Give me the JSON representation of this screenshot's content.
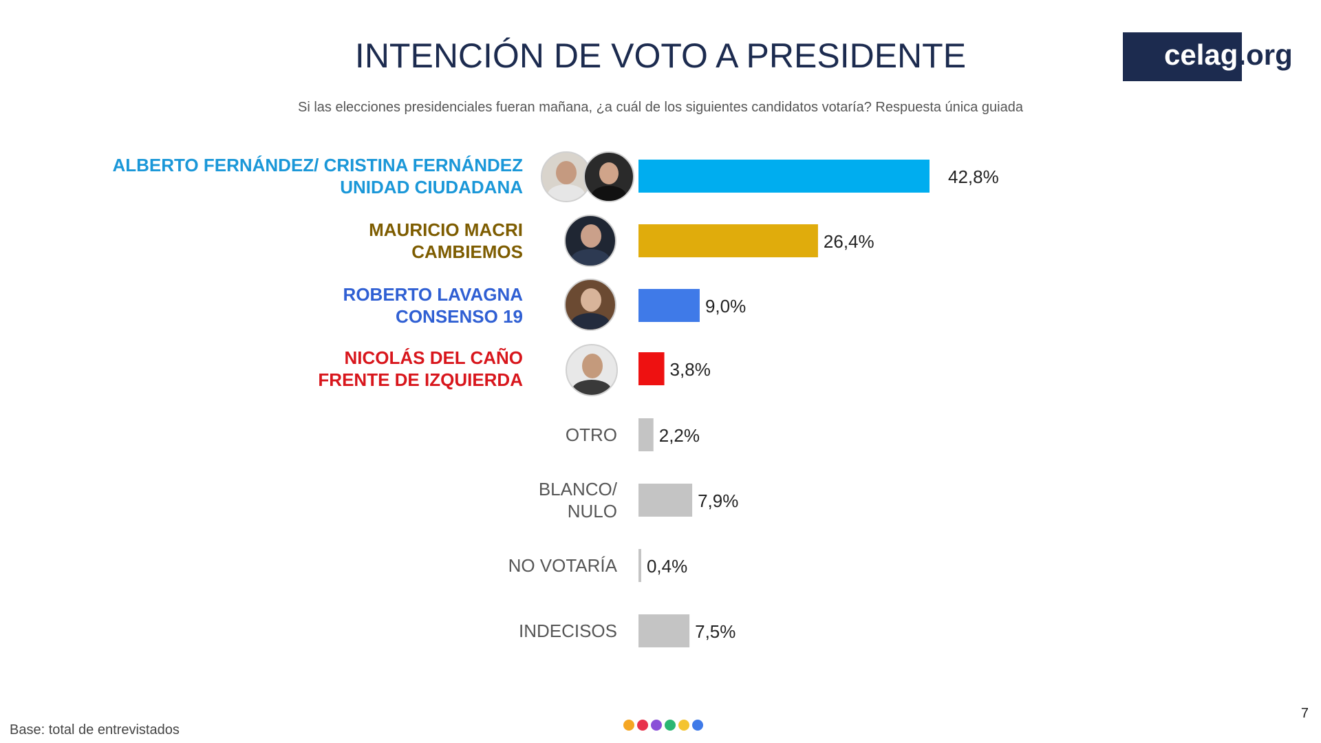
{
  "header": {
    "title": "INTENCIÓN DE VOTO A PRESIDENTE",
    "subtitle": "Si las elecciones presidenciales fueran mañana, ¿a cuál de los siguientes candidatos votaría? Respuesta única guiada"
  },
  "logo": {
    "main": "celag",
    "tld": ".org"
  },
  "chart_data": {
    "type": "bar",
    "orientation": "horizontal",
    "title": "INTENCIÓN DE VOTO A PRESIDENTE",
    "xlabel": "",
    "ylabel": "",
    "xlim": [
      0,
      42.8
    ],
    "grid": false,
    "legend": "none",
    "unit": "%",
    "categories": [
      [
        "ALBERTO FERNÁNDEZ/ CRISTINA FERNÁNDEZ",
        "UNIDAD CIUDADANA"
      ],
      [
        "MAURICIO MACRI",
        "CAMBIEMOS"
      ],
      [
        "ROBERTO LAVAGNA",
        "CONSENSO 19"
      ],
      [
        "NICOLÁS DEL CAÑO",
        "FRENTE DE IZQUIERDA"
      ],
      [
        "OTRO"
      ],
      [
        "BLANCO/",
        "NULO"
      ],
      [
        "NO VOTARÍA"
      ],
      [
        "INDECISOS"
      ]
    ],
    "values": [
      42.8,
      26.4,
      9.0,
      3.8,
      2.2,
      7.9,
      0.4,
      7.5
    ],
    "value_labels": [
      "42,8%",
      "26,4%",
      "9,0%",
      "3,8%",
      "2,2%",
      "7,9%",
      "0,4%",
      "7,5%"
    ],
    "bar_colors": [
      "#00adef",
      "#e0ac0c",
      "#3f7ae8",
      "#ee1111",
      "#c4c4c4",
      "#c4c4c4",
      "#c4c4c4",
      "#c4c4c4"
    ],
    "label_colors": [
      "#1a97d8",
      "#7d5c00",
      "#2f5fd3",
      "#d8161c",
      "#555555",
      "#555555",
      "#555555",
      "#555555"
    ],
    "label_bold": [
      true,
      true,
      true,
      true,
      false,
      false,
      false,
      false
    ]
  },
  "candidates": [
    {
      "icons": [
        "portrait-alberto-fernandez",
        "portrait-cristina-fernandez"
      ]
    },
    {
      "icons": [
        "portrait-mauricio-macri"
      ]
    },
    {
      "icons": [
        "portrait-roberto-lavagna"
      ]
    },
    {
      "icons": [
        "portrait-nicolas-del-cano"
      ]
    }
  ],
  "footer": {
    "base": "Base: total de entrevistados",
    "page": "7",
    "dot_colors": [
      "#f5a623",
      "#e8324c",
      "#8a4fd8",
      "#2bb673",
      "#f4c430",
      "#3f7ae8"
    ]
  }
}
